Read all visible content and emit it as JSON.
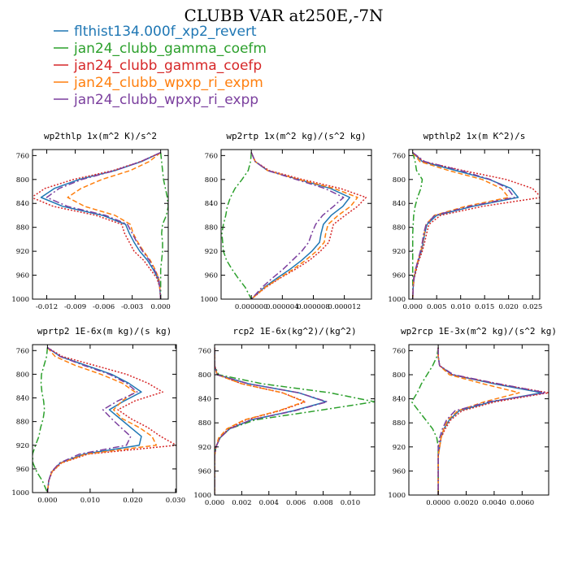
{
  "figure": {
    "title": "CLUBB VAR at250E,-7N",
    "legend": [
      {
        "name": "flthist134.000f_xp2_revert",
        "color": "#1f77b4",
        "dash": "solid"
      },
      {
        "name": "jan24_clubb_gamma_coefm",
        "color": "#2ca02c",
        "dash": "dashdot"
      },
      {
        "name": "jan24_clubb_gamma_coefp",
        "color": "#d62728",
        "dash": "dot"
      },
      {
        "name": "jan24_clubb_wpxp_ri_expm",
        "color": "#ff7f0e",
        "dash": "dash"
      },
      {
        "name": "jan24_clubb_wpxp_ri_expp",
        "color": "#7b3f9e",
        "dash": "dashdot"
      }
    ]
  },
  "chart_data": [
    {
      "type": "line",
      "title": "wp2thlp  1x(m^2 K)/s^2",
      "xlim": [
        -0.0135,
        0.0008
      ],
      "xticks": [
        -0.012,
        -0.009,
        -0.006,
        -0.003,
        0.0
      ],
      "xtick_labels": [
        "-0.012",
        "-0.009",
        "-0.006",
        "-0.003",
        "0.000"
      ],
      "ylim": [
        1000,
        750
      ],
      "yticks": [
        760,
        800,
        840,
        880,
        920,
        960,
        1000
      ],
      "ytick_labels": [
        "760",
        "800",
        "840",
        "880",
        "920",
        "960",
        "1000"
      ],
      "y": [
        755,
        770,
        785,
        800,
        815,
        830,
        845,
        860,
        875,
        890,
        905,
        920,
        935,
        950,
        965,
        980,
        1000
      ],
      "series": [
        {
          "name": "flthist134.000f_xp2_revert",
          "values": [
            0.0,
            -0.002,
            -0.0048,
            -0.0086,
            -0.0112,
            -0.0126,
            -0.0103,
            -0.0061,
            -0.0037,
            -0.0033,
            -0.0028,
            -0.0022,
            -0.0014,
            -0.0008,
            -0.0003,
            -0.0001,
            0.0
          ]
        },
        {
          "name": "jan24_clubb_gamma_coefm",
          "values": [
            0.0,
            0.0001,
            0.0002,
            0.0003,
            0.0005,
            0.0007,
            0.0008,
            0.0006,
            0.0002,
            0.0001,
            0.0002,
            0.0002,
            0.0001,
            0.0,
            0.0,
            0.0,
            0.0
          ]
        },
        {
          "name": "jan24_clubb_gamma_coefp",
          "values": [
            0.0,
            -0.0021,
            -0.005,
            -0.0092,
            -0.0122,
            -0.0136,
            -0.0113,
            -0.0068,
            -0.0041,
            -0.0038,
            -0.0033,
            -0.0028,
            -0.0018,
            -0.0011,
            -0.0004,
            -0.0001,
            0.0
          ]
        },
        {
          "name": "jan24_clubb_wpxp_ri_expm",
          "values": [
            0.0,
            -0.0012,
            -0.0032,
            -0.0062,
            -0.0084,
            -0.0098,
            -0.008,
            -0.0048,
            -0.0032,
            -0.0029,
            -0.0024,
            -0.0018,
            -0.0011,
            -0.0006,
            -0.0002,
            -0.0001,
            0.0
          ]
        },
        {
          "name": "jan24_clubb_wpxp_ri_expp",
          "values": [
            0.0,
            -0.0021,
            -0.0048,
            -0.0083,
            -0.0107,
            -0.012,
            -0.0098,
            -0.0058,
            -0.0035,
            -0.003,
            -0.0025,
            -0.0019,
            -0.0012,
            -0.0007,
            -0.0002,
            -0.0001,
            0.0
          ]
        }
      ]
    },
    {
      "type": "line",
      "title": "wp2rtp  1x(m^2 kg)/(s^2 kg)",
      "xlim": [
        -3.9e-06,
        1.55e-05
      ],
      "xticks": [
        0.0,
        4e-06,
        8e-06,
        1.2e-05
      ],
      "xtick_labels": [
        "0.000000",
        "0.000004",
        "0.000008",
        "0.000012"
      ],
      "ylim": [
        1000,
        750
      ],
      "yticks": [
        760,
        800,
        840,
        880,
        920,
        960,
        1000
      ],
      "ytick_labels": [
        "760",
        "800",
        "840",
        "880",
        "920",
        "960",
        "1000"
      ],
      "y": [
        755,
        770,
        785,
        800,
        815,
        830,
        845,
        860,
        875,
        890,
        905,
        920,
        935,
        950,
        965,
        980,
        1000
      ],
      "series": [
        {
          "name": "flthist134.000f_xp2_revert",
          "values": [
            0.0,
            5e-07,
            2.1e-06,
            6.1e-06,
            1.02e-05,
            1.27e-05,
            1.18e-05,
            1.03e-05,
            9.3e-06,
            9e-06,
            8.8e-06,
            7.8e-06,
            6.5e-06,
            5e-06,
            3.3e-06,
            1.7e-06,
            0.0
          ]
        },
        {
          "name": "jan24_clubb_gamma_coefm",
          "values": [
            0.0,
            -1e-07,
            -4e-07,
            -1.2e-06,
            -2.1e-06,
            -2.7e-06,
            -3.1e-06,
            -3.3e-06,
            -3.6e-06,
            -3.8e-06,
            -3.7e-06,
            -3.6e-06,
            -3.2e-06,
            -2.5e-06,
            -1.7e-06,
            -8e-07,
            0.0
          ]
        },
        {
          "name": "jan24_clubb_gamma_coefp",
          "values": [
            0.0,
            5e-07,
            2.3e-06,
            6.6e-06,
            1.15e-05,
            1.48e-05,
            1.37e-05,
            1.21e-05,
            1.06e-05,
            1.03e-05,
            1e-05,
            8.9e-06,
            7.5e-06,
            5.7e-06,
            3.7e-06,
            1.9e-06,
            0.0
          ]
        },
        {
          "name": "jan24_clubb_wpxp_ri_expm",
          "values": [
            0.0,
            5e-07,
            2.1e-06,
            6.1e-06,
            1.07e-05,
            1.37e-05,
            1.28e-05,
            1.12e-05,
            9.9e-06,
            9.6e-06,
            9.4e-06,
            8.4e-06,
            7e-06,
            5.4e-06,
            3.6e-06,
            1.8e-06,
            0.0
          ]
        },
        {
          "name": "jan24_clubb_wpxp_ri_expp",
          "values": [
            0.0,
            5e-07,
            2.1e-06,
            5.8e-06,
            9.5e-06,
            1.19e-05,
            1.06e-05,
            9.2e-06,
            8.3e-06,
            7.8e-06,
            7.4e-06,
            6.5e-06,
            5.3e-06,
            4.1e-06,
            2.7e-06,
            1.4e-06,
            0.0
          ]
        }
      ]
    },
    {
      "type": "line",
      "title": "wpthlp2  1x(m K^2)/s",
      "xlim": [
        -0.0008,
        0.0265
      ],
      "xticks": [
        0.0,
        0.005,
        0.01,
        0.015,
        0.02,
        0.025
      ],
      "xtick_labels": [
        "0.000",
        "0.005",
        "0.010",
        "0.015",
        "0.020",
        "0.025"
      ],
      "ylim": [
        1000,
        750
      ],
      "yticks": [
        760,
        800,
        840,
        880,
        920,
        960,
        1000
      ],
      "ytick_labels": [
        "760",
        "800",
        "840",
        "880",
        "920",
        "960",
        "1000"
      ],
      "y": [
        755,
        770,
        785,
        800,
        815,
        830,
        845,
        860,
        875,
        890,
        905,
        920,
        935,
        950,
        965,
        980,
        1000
      ],
      "series": [
        {
          "name": "flthist134.000f_xp2_revert",
          "values": [
            0.0,
            0.002,
            0.009,
            0.016,
            0.0205,
            0.022,
            0.0125,
            0.005,
            0.003,
            0.0025,
            0.0022,
            0.0018,
            0.0012,
            0.0007,
            0.0003,
            0.0001,
            0.0
          ]
        },
        {
          "name": "jan24_clubb_gamma_coefm",
          "values": [
            0.0,
            0.0005,
            0.0008,
            0.002,
            0.0017,
            0.001,
            0.0005,
            0.0002,
            0.0001,
            0.0,
            0.0,
            0.0,
            0.0,
            0.0,
            0.0,
            0.0,
            0.0
          ]
        },
        {
          "name": "jan24_clubb_gamma_coefp",
          "values": [
            0.0,
            0.0022,
            0.0105,
            0.0195,
            0.025,
            0.0268,
            0.0145,
            0.0058,
            0.0034,
            0.0029,
            0.0025,
            0.002,
            0.0013,
            0.0008,
            0.0003,
            0.0001,
            0.0
          ]
        },
        {
          "name": "jan24_clubb_wpxp_ri_expm",
          "values": [
            0.0,
            0.0015,
            0.0075,
            0.0145,
            0.0185,
            0.02,
            0.011,
            0.0045,
            0.0028,
            0.0024,
            0.0021,
            0.0017,
            0.0011,
            0.0006,
            0.0002,
            0.0001,
            0.0
          ]
        },
        {
          "name": "jan24_clubb_wpxp_ri_expp",
          "values": [
            0.0,
            0.0025,
            0.01,
            0.0162,
            0.0198,
            0.0212,
            0.0118,
            0.0046,
            0.0028,
            0.0023,
            0.002,
            0.0016,
            0.0011,
            0.0006,
            0.0002,
            0.0001,
            0.0
          ]
        }
      ]
    },
    {
      "type": "line",
      "title": "wprtp2  1E-6x(m kg)/(s kg)",
      "xlim": [
        -0.0035,
        0.0302
      ],
      "xticks": [
        0.0,
        0.01,
        0.02,
        0.03
      ],
      "xtick_labels": [
        "0.000",
        "0.010",
        "0.020",
        "0.030"
      ],
      "ylim": [
        1000,
        750
      ],
      "yticks": [
        760,
        800,
        840,
        880,
        920,
        960,
        1000
      ],
      "ytick_labels": [
        "760",
        "800",
        "840",
        "880",
        "920",
        "960",
        "1000"
      ],
      "y": [
        755,
        770,
        785,
        800,
        815,
        830,
        845,
        860,
        875,
        890,
        905,
        920,
        935,
        950,
        965,
        980,
        1000
      ],
      "series": [
        {
          "name": "flthist134.000f_xp2_revert",
          "values": [
            0.0,
            0.003,
            0.009,
            0.015,
            0.019,
            0.022,
            0.018,
            0.0145,
            0.017,
            0.0195,
            0.022,
            0.0215,
            0.0085,
            0.003,
            0.001,
            0.0003,
            0.0
          ]
        },
        {
          "name": "jan24_clubb_gamma_coefm",
          "values": [
            0.0,
            -0.0002,
            -0.0008,
            -0.0014,
            -0.0015,
            -0.0013,
            -0.0009,
            -0.0007,
            -0.001,
            -0.0016,
            -0.002,
            -0.0028,
            -0.0035,
            -0.0034,
            -0.0025,
            -0.0012,
            0.0
          ]
        },
        {
          "name": "jan24_clubb_gamma_coefp",
          "values": [
            0.0,
            0.0035,
            0.011,
            0.0185,
            0.0235,
            0.027,
            0.0205,
            0.0165,
            0.0195,
            0.0235,
            0.0265,
            0.0302,
            0.0095,
            0.0033,
            0.0011,
            0.0003,
            0.0
          ]
        },
        {
          "name": "jan24_clubb_wpxp_ri_expm",
          "values": [
            0.0,
            0.0018,
            0.0065,
            0.0125,
            0.0175,
            0.0205,
            0.0175,
            0.0155,
            0.0175,
            0.0215,
            0.0245,
            0.0255,
            0.009,
            0.0032,
            0.001,
            0.0003,
            0.0
          ]
        },
        {
          "name": "jan24_clubb_wpxp_ri_expp",
          "values": [
            0.0,
            0.003,
            0.0085,
            0.0145,
            0.0185,
            0.021,
            0.0165,
            0.013,
            0.015,
            0.0172,
            0.0195,
            0.0185,
            0.0075,
            0.0028,
            0.0009,
            0.0003,
            0.0
          ]
        }
      ]
    },
    {
      "type": "line",
      "title": "rcp2  1E-6x(kg^2)/(kg^2)",
      "xlim": [
        0.0,
        0.0118
      ],
      "xticks": [
        0.0,
        0.002,
        0.004,
        0.006,
        0.008,
        0.01
      ],
      "xtick_labels": [
        "0.000",
        "0.002",
        "0.004",
        "0.006",
        "0.008",
        "0.010"
      ],
      "ylim": [
        1000,
        750
      ],
      "yticks": [
        760,
        800,
        840,
        880,
        920,
        960,
        1000
      ],
      "ytick_labels": [
        "760",
        "800",
        "840",
        "880",
        "920",
        "960",
        "1000"
      ],
      "y": [
        755,
        770,
        785,
        800,
        815,
        830,
        845,
        860,
        875,
        890,
        905,
        920,
        935,
        950,
        965,
        980,
        1000
      ],
      "series": [
        {
          "name": "flthist134.000f_xp2_revert",
          "values": [
            0.0,
            0.0,
            0.0,
            0.0002,
            0.0025,
            0.0062,
            0.0082,
            0.0058,
            0.0027,
            0.0011,
            0.0004,
            0.0001,
            0.0,
            0.0,
            0.0,
            0.0,
            0.0
          ]
        },
        {
          "name": "jan24_clubb_gamma_coefm",
          "values": [
            0.0,
            0.0,
            0.0,
            0.0003,
            0.0035,
            0.0085,
            0.0118,
            0.0075,
            0.003,
            0.0011,
            0.0004,
            0.0001,
            0.0,
            0.0,
            0.0,
            0.0,
            0.0
          ]
        },
        {
          "name": "jan24_clubb_gamma_coefp",
          "values": [
            0.0,
            0.0,
            0.0,
            0.0002,
            0.002,
            0.005,
            0.0067,
            0.0048,
            0.0023,
            0.001,
            0.0004,
            0.0001,
            0.0,
            0.0,
            0.0,
            0.0,
            0.0
          ]
        },
        {
          "name": "jan24_clubb_wpxp_ri_expm",
          "values": [
            0.0,
            0.0,
            0.0,
            0.0002,
            0.002,
            0.005,
            0.0066,
            0.0047,
            0.0022,
            0.0009,
            0.0003,
            0.0001,
            0.0,
            0.0,
            0.0,
            0.0,
            0.0
          ]
        },
        {
          "name": "jan24_clubb_wpxp_ri_expp",
          "values": [
            0.0,
            0.0,
            0.0,
            0.0002,
            0.0025,
            0.0062,
            0.0083,
            0.0059,
            0.0027,
            0.0011,
            0.0004,
            0.0001,
            0.0,
            0.0,
            0.0,
            0.0,
            0.0
          ]
        }
      ]
    },
    {
      "type": "line",
      "title": "wp2rcp  1E-3x(m^2 kg)/(s^2 kg)",
      "xlim": [
        -0.0021,
        0.0079
      ],
      "xticks": [
        0.0,
        0.002,
        0.004,
        0.006
      ],
      "xtick_labels": [
        "0.0000",
        "0.0020",
        "0.0040",
        "0.0060"
      ],
      "ylim": [
        1000,
        750
      ],
      "yticks": [
        760,
        800,
        840,
        880,
        920,
        960,
        1000
      ],
      "ytick_labels": [
        "760",
        "800",
        "840",
        "880",
        "920",
        "960",
        "1000"
      ],
      "y": [
        755,
        770,
        785,
        800,
        815,
        830,
        845,
        860,
        875,
        890,
        905,
        920,
        935,
        950,
        965,
        980,
        1000
      ],
      "series": [
        {
          "name": "flthist134.000f_xp2_revert",
          "values": [
            0.0,
            0.0,
            0.0001,
            0.001,
            0.004,
            0.0074,
            0.0038,
            0.0015,
            0.0008,
            0.0004,
            0.0002,
            0.0001,
            0.0,
            0.0,
            0.0,
            0.0,
            0.0
          ]
        },
        {
          "name": "jan24_clubb_gamma_coefm",
          "values": [
            0.0,
            -0.0001,
            -0.0004,
            -0.0008,
            -0.0012,
            -0.0015,
            -0.0019,
            -0.0014,
            -0.0009,
            -0.0004,
            -0.0001,
            0.0,
            0.0,
            0.0,
            0.0,
            0.0,
            0.0
          ]
        },
        {
          "name": "jan24_clubb_gamma_coefp",
          "values": [
            0.0,
            0.0,
            0.0001,
            0.001,
            0.0042,
            0.0079,
            0.0041,
            0.0017,
            0.0009,
            0.0005,
            0.0002,
            0.0001,
            0.0,
            0.0,
            0.0,
            0.0,
            0.0
          ]
        },
        {
          "name": "jan24_clubb_wpxp_ri_expm",
          "values": [
            0.0,
            0.0,
            0.0001,
            0.0008,
            0.0032,
            0.0058,
            0.0033,
            0.0014,
            0.0007,
            0.0004,
            0.0002,
            0.0001,
            0.0,
            0.0,
            0.0,
            0.0,
            0.0
          ]
        },
        {
          "name": "jan24_clubb_wpxp_ri_expp",
          "values": [
            0.0,
            0.0,
            0.0001,
            0.0011,
            0.0043,
            0.0077,
            0.0036,
            0.0012,
            0.0006,
            0.0003,
            0.0001,
            0.0,
            0.0,
            0.0,
            0.0,
            0.0,
            0.0
          ]
        }
      ]
    }
  ]
}
